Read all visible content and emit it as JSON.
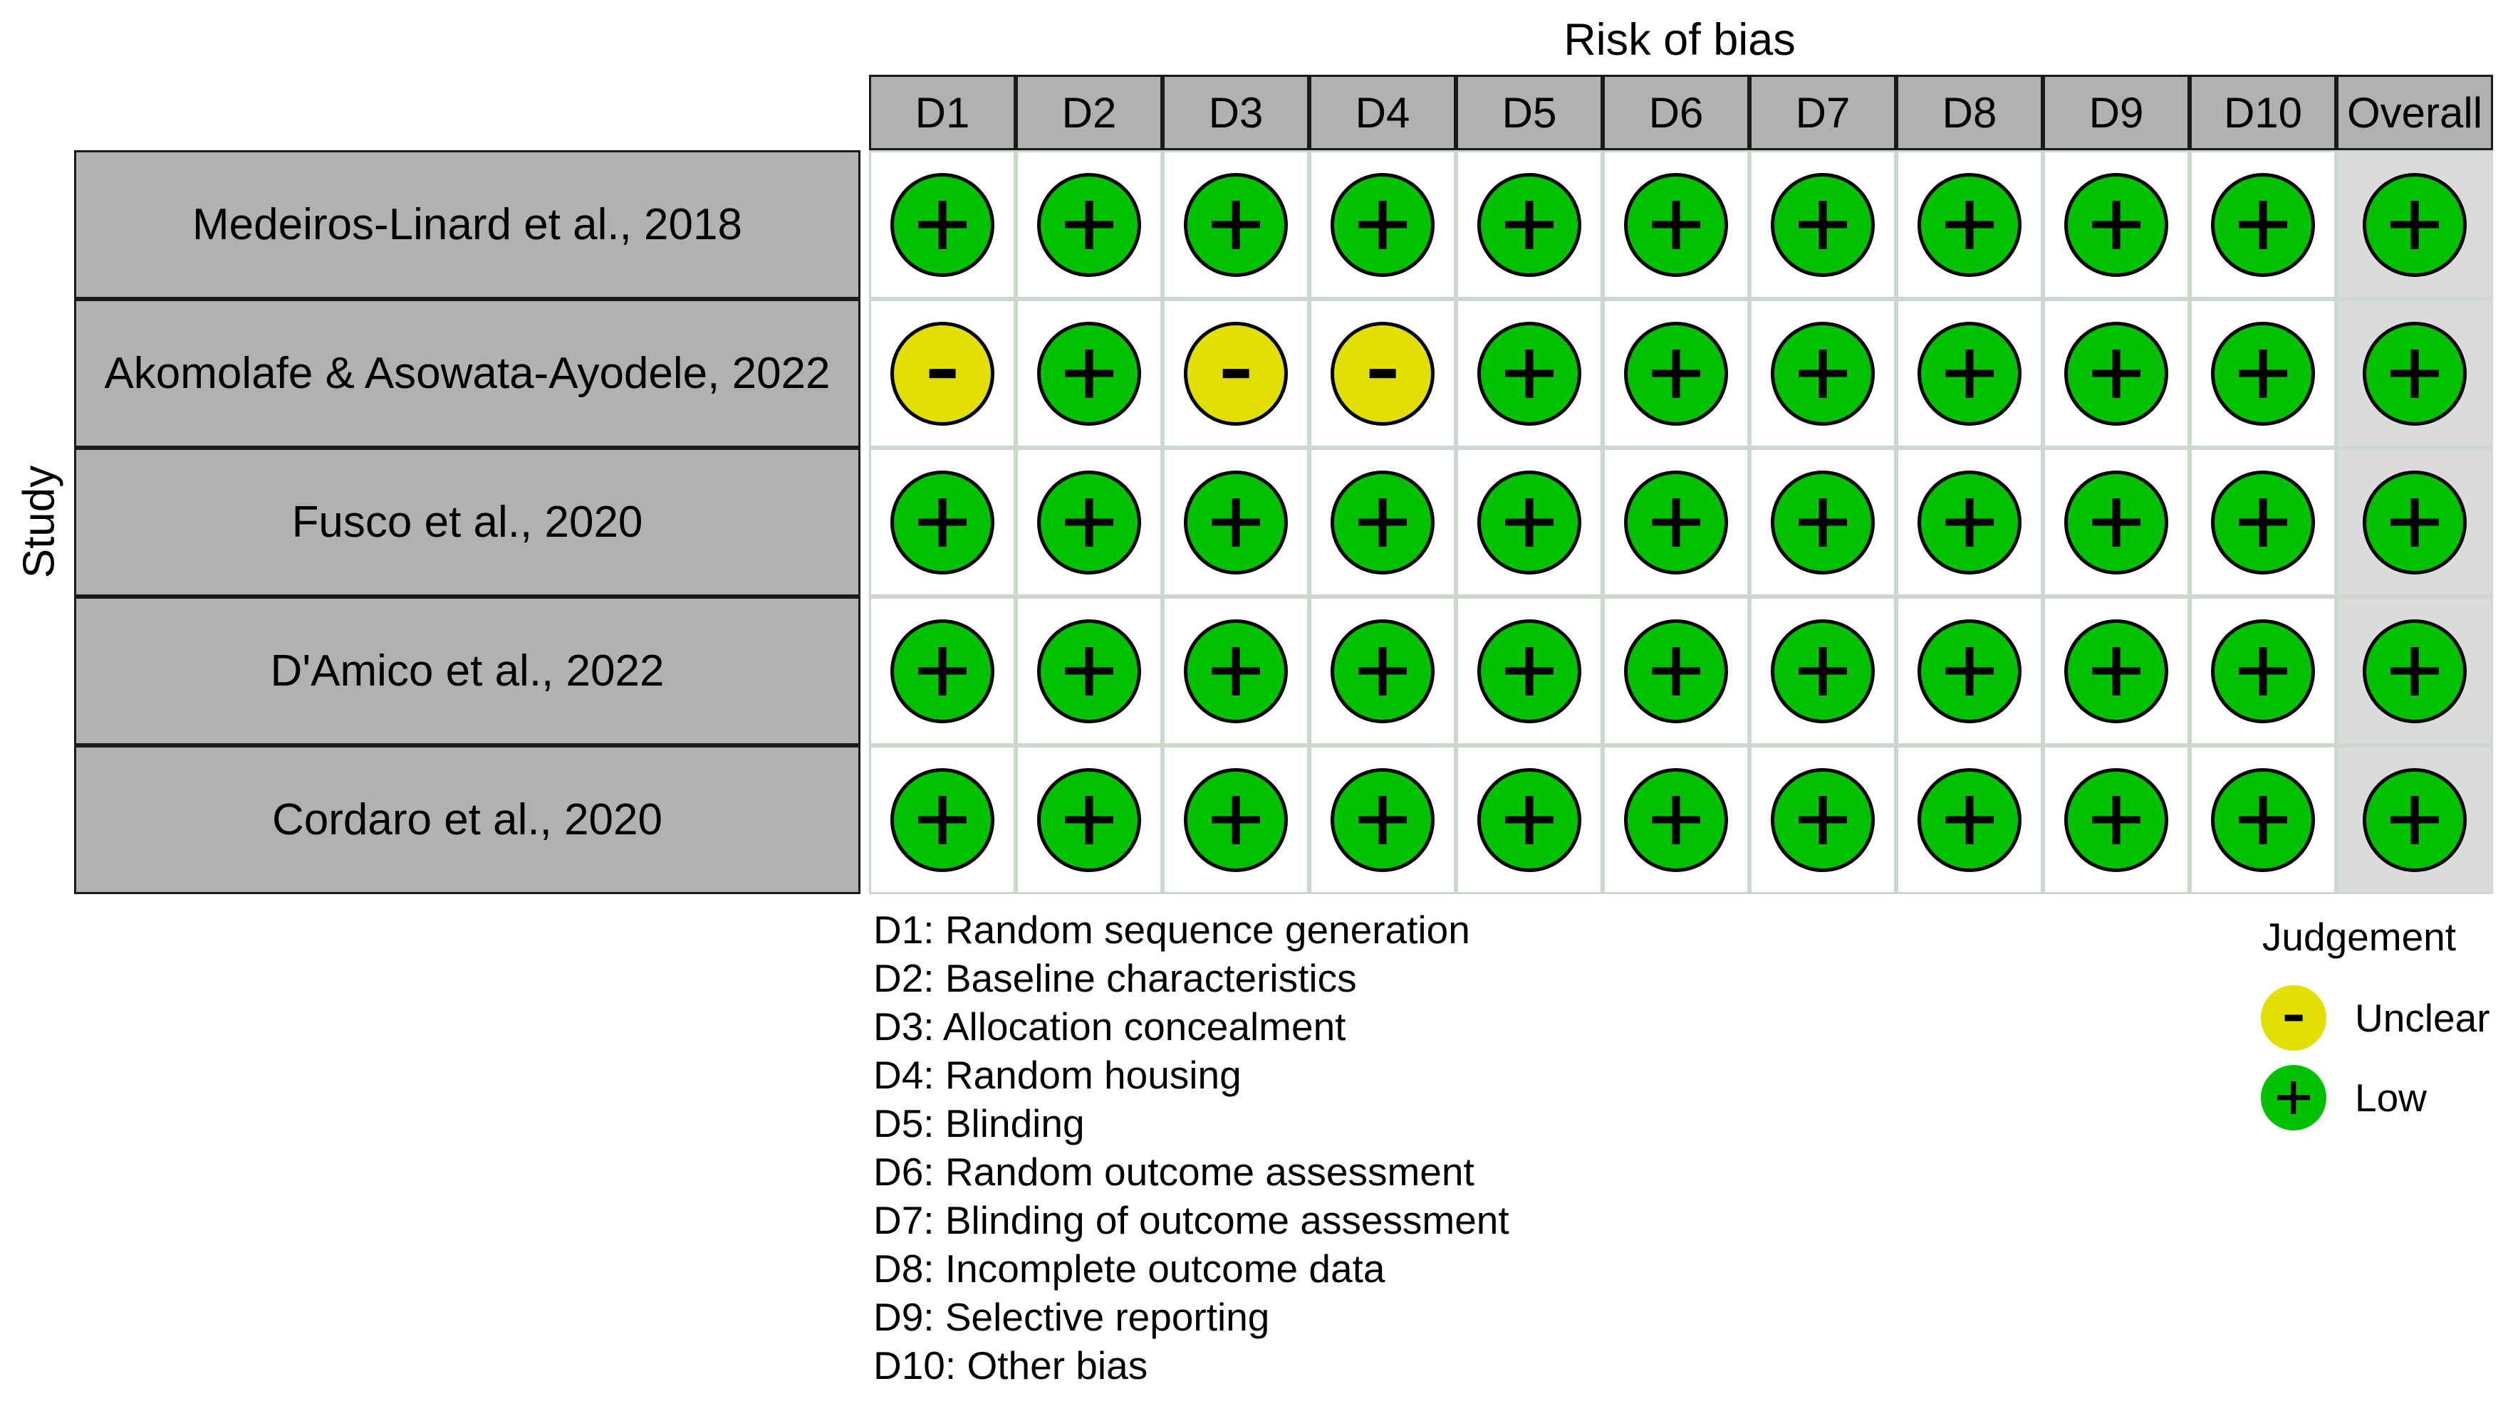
{
  "title": "Risk of bias",
  "y_axis_label": "Study",
  "chart_data": {
    "type": "heatmap",
    "subtype": "risk-of-bias-traffic-light-plot",
    "title": "Risk of bias",
    "ylabel": "Study",
    "columns": [
      "D1",
      "D2",
      "D3",
      "D4",
      "D5",
      "D6",
      "D7",
      "D8",
      "D9",
      "D10",
      "Overall"
    ],
    "rows": [
      "Medeiros-Linard et al., 2018",
      "Akomolafe & Asowata-Ayodele, 2022",
      "Fusco et al., 2020",
      "D'Amico et al., 2022",
      "Cordaro et al., 2020"
    ],
    "values": [
      [
        "+",
        "+",
        "+",
        "+",
        "+",
        "+",
        "+",
        "+",
        "+",
        "+",
        "+"
      ],
      [
        "-",
        "+",
        "-",
        "-",
        "+",
        "+",
        "+",
        "+",
        "+",
        "+",
        "+"
      ],
      [
        "+",
        "+",
        "+",
        "+",
        "+",
        "+",
        "+",
        "+",
        "+",
        "+",
        "+"
      ],
      [
        "+",
        "+",
        "+",
        "+",
        "+",
        "+",
        "+",
        "+",
        "+",
        "+",
        "+"
      ],
      [
        "+",
        "+",
        "+",
        "+",
        "+",
        "+",
        "+",
        "+",
        "+",
        "+",
        "+"
      ]
    ],
    "value_meaning": {
      "+": "Low",
      "-": "Unclear"
    },
    "legend_position": "bottom-right",
    "grid": "on"
  },
  "domain_legend": [
    {
      "code": "D1",
      "label": "Random sequence generation"
    },
    {
      "code": "D2",
      "label": "Baseline characteristics"
    },
    {
      "code": "D3",
      "label": "Allocation concealment"
    },
    {
      "code": "D4",
      "label": "Random housing"
    },
    {
      "code": "D5",
      "label": "Blinding"
    },
    {
      "code": "D6",
      "label": "Random outcome assessment"
    },
    {
      "code": "D7",
      "label": "Blinding of outcome assessment"
    },
    {
      "code": "D8",
      "label": "Incomplete outcome data"
    },
    {
      "code": "D9",
      "label": "Selective reporting"
    },
    {
      "code": "D10",
      "label": "Other bias"
    }
  ],
  "judgement_legend": {
    "title": "Judgement",
    "items": [
      {
        "symbol": "-",
        "label": "Unclear",
        "color": "#E2DF07"
      },
      {
        "symbol": "+",
        "label": "Low",
        "color": "#02C100"
      }
    ]
  },
  "colors": {
    "low": "#02C100",
    "unclear": "#E2DF07",
    "header_fill": "#B1B1B1",
    "header_border": "#1A1A1A",
    "grid_line": "#CBD8CB",
    "overall_column_fill": "#DBDBDB",
    "symbol": "#000000",
    "background": "#FFFFFF"
  }
}
